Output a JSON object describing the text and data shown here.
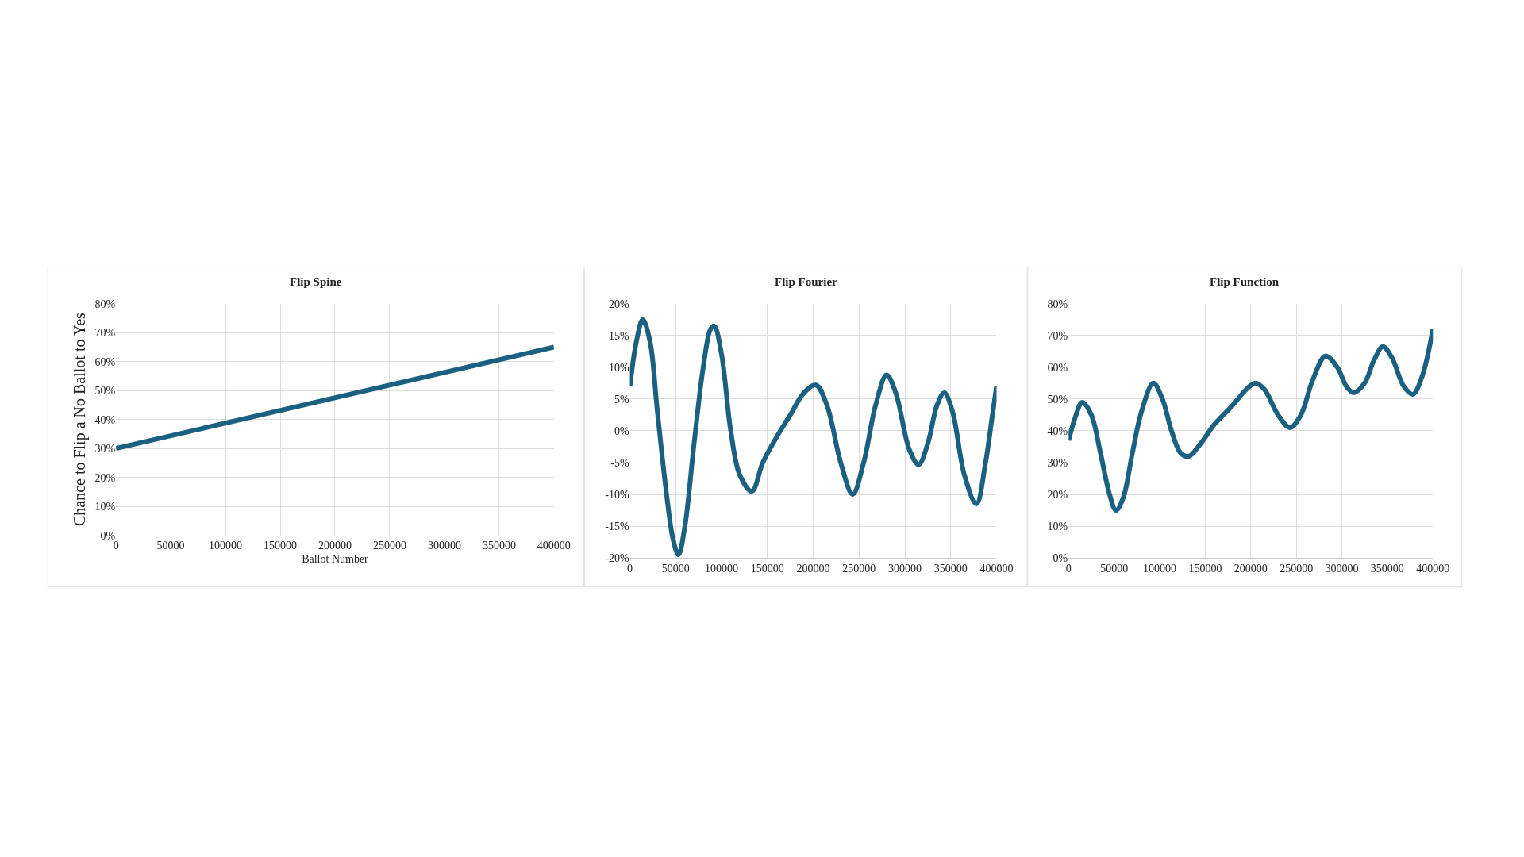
{
  "chart_data": [
    {
      "type": "line",
      "title": "Flip Spine",
      "xlabel": "Ballot Number",
      "ylabel": "Chance to Flip a No Ballot to Yes",
      "x": [
        0,
        400000
      ],
      "series": [
        {
          "color": "#1a6080",
          "values": [
            30,
            65
          ]
        }
      ],
      "xlim": [
        0,
        400000
      ],
      "xticks": [
        0,
        50000,
        100000,
        150000,
        200000,
        250000,
        300000,
        350000,
        400000
      ],
      "ylim": [
        0,
        80
      ],
      "yticks": [
        {
          "value": 0,
          "label": "0%"
        },
        {
          "value": 10,
          "label": "10%"
        },
        {
          "value": 20,
          "label": "20%"
        },
        {
          "value": 30,
          "label": "30%"
        },
        {
          "value": 40,
          "label": "40%"
        },
        {
          "value": 50,
          "label": "50%"
        },
        {
          "value": 60,
          "label": "60%"
        },
        {
          "value": 70,
          "label": "70%"
        },
        {
          "value": 80,
          "label": "80%"
        }
      ],
      "grid": true
    },
    {
      "type": "line",
      "title": "Flip Fourier",
      "x": [
        0,
        7000,
        14000,
        22000,
        30000,
        40000,
        47000,
        53000,
        60000,
        70000,
        80000,
        88000,
        92000,
        100000,
        110000,
        120000,
        133000,
        145000,
        160000,
        175000,
        190000,
        203000,
        215000,
        230000,
        243000,
        255000,
        268000,
        280000,
        290000,
        305000,
        315000,
        325000,
        335000,
        343000,
        352000,
        365000,
        378000,
        388000,
        395000,
        400000
      ],
      "series": [
        {
          "color": "#1a6080",
          "values": [
            7,
            14,
            17.5,
            14,
            3,
            -10,
            -17,
            -19.5,
            -15,
            -2,
            10,
            16,
            16.5,
            12,
            0,
            -7,
            -9.5,
            -5,
            -1,
            2.5,
            6,
            7.2,
            4,
            -5,
            -10,
            -5,
            4,
            8.8,
            6,
            -3,
            -5.3,
            -2,
            4,
            6,
            3,
            -7,
            -11.5,
            -5,
            2,
            7
          ]
        }
      ],
      "xlim": [
        0,
        400000
      ],
      "xticks": [
        0,
        50000,
        100000,
        150000,
        200000,
        250000,
        300000,
        350000,
        400000
      ],
      "ylim": [
        -20,
        20
      ],
      "yticks": [
        {
          "value": -20,
          "label": "-20%"
        },
        {
          "value": -15,
          "label": "-15%"
        },
        {
          "value": -10,
          "label": "-10%"
        },
        {
          "value": -5,
          "label": "-5%"
        },
        {
          "value": 0,
          "label": "0%"
        },
        {
          "value": 5,
          "label": "5%"
        },
        {
          "value": 10,
          "label": "10%"
        },
        {
          "value": 15,
          "label": "15%"
        },
        {
          "value": 20,
          "label": "20%"
        }
      ],
      "grid": true
    },
    {
      "type": "line",
      "title": "Flip Function",
      "x": [
        0,
        7000,
        15000,
        25000,
        35000,
        45000,
        52000,
        60000,
        70000,
        80000,
        93000,
        103000,
        113000,
        123000,
        132000,
        145000,
        160000,
        180000,
        195000,
        205000,
        215000,
        230000,
        243000,
        255000,
        268000,
        282000,
        295000,
        305000,
        313000,
        325000,
        335000,
        345000,
        355000,
        368000,
        378000,
        388000,
        400000
      ],
      "series": [
        {
          "color": "#1a6080",
          "values": [
            37,
            44,
            49,
            45,
            33,
            20,
            15,
            19,
            33,
            46,
            55,
            50,
            40,
            33,
            32,
            36,
            42,
            48,
            53,
            55,
            53,
            45,
            41,
            45,
            56,
            63.5,
            60,
            54,
            52,
            55,
            62,
            66.5,
            63,
            54,
            51.5,
            57,
            72
          ]
        }
      ],
      "xlim": [
        0,
        400000
      ],
      "xticks": [
        0,
        50000,
        100000,
        150000,
        200000,
        250000,
        300000,
        350000,
        400000
      ],
      "ylim": [
        0,
        80
      ],
      "yticks": [
        {
          "value": 0,
          "label": "0%"
        },
        {
          "value": 10,
          "label": "10%"
        },
        {
          "value": 20,
          "label": "20%"
        },
        {
          "value": 30,
          "label": "30%"
        },
        {
          "value": 40,
          "label": "40%"
        },
        {
          "value": 50,
          "label": "50%"
        },
        {
          "value": 60,
          "label": "60%"
        },
        {
          "value": 70,
          "label": "70%"
        },
        {
          "value": 80,
          "label": "80%"
        }
      ],
      "grid": true
    }
  ]
}
